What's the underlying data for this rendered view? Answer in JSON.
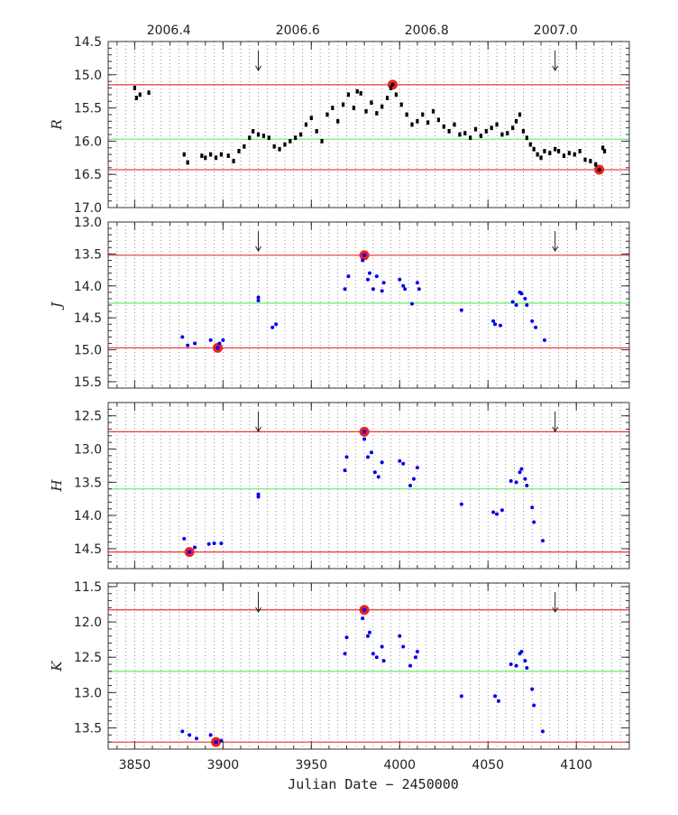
{
  "chart_data": {
    "type": "scatter",
    "shared_x": {
      "label": "Julian Date − 2450000",
      "range": [
        3835,
        4130
      ],
      "ticks": [
        3850,
        3900,
        3950,
        4000,
        4050,
        4100
      ],
      "top_axis_label_positions_jd": [
        3869.3,
        3942.3,
        4015.3,
        4088.3
      ],
      "top_axis_labels": [
        "2006.4",
        "2006.6",
        "2006.8",
        "2007.0"
      ],
      "dotted_vertical_grid": true
    },
    "arrow_markers_jd": [
      3920,
      4088
    ],
    "colors": {
      "R_points": "#000000",
      "JHK_points": "#0000ee",
      "extreme_lines": "#ee3333",
      "mean_line": "#66ee66",
      "highlight_marker": "#ee2222"
    },
    "panels": [
      {
        "band": "R",
        "ylim": [
          17.0,
          14.5
        ],
        "yticks": [
          14.5,
          15.0,
          15.5,
          16.0,
          16.5,
          17.0
        ],
        "ytick_labels": [
          "14.5",
          "15.0",
          "15.5",
          "16.0",
          "16.5",
          "17.0"
        ],
        "max_line": 15.15,
        "mean_line": 15.97,
        "min_line": 16.43,
        "highlighted_points": [
          [
            3996,
            15.15
          ],
          [
            4113,
            16.43
          ]
        ],
        "points": [
          [
            3850,
            15.2
          ],
          [
            3851,
            15.35
          ],
          [
            3853,
            15.3
          ],
          [
            3858,
            15.27
          ],
          [
            3878,
            16.2
          ],
          [
            3880,
            16.32
          ],
          [
            3888,
            16.22
          ],
          [
            3890,
            16.25
          ],
          [
            3893,
            16.2
          ],
          [
            3896,
            16.25
          ],
          [
            3899,
            16.2
          ],
          [
            3903,
            16.22
          ],
          [
            3906,
            16.3
          ],
          [
            3909,
            16.15
          ],
          [
            3912,
            16.08
          ],
          [
            3915,
            15.95
          ],
          [
            3917,
            15.85
          ],
          [
            3920,
            15.9
          ],
          [
            3923,
            15.92
          ],
          [
            3926,
            15.95
          ],
          [
            3929,
            16.08
          ],
          [
            3932,
            16.12
          ],
          [
            3935,
            16.05
          ],
          [
            3938,
            16.0
          ],
          [
            3941,
            15.95
          ],
          [
            3944,
            15.9
          ],
          [
            3947,
            15.75
          ],
          [
            3950,
            15.65
          ],
          [
            3953,
            15.85
          ],
          [
            3956,
            16.0
          ],
          [
            3959,
            15.6
          ],
          [
            3962,
            15.5
          ],
          [
            3965,
            15.7
          ],
          [
            3968,
            15.45
          ],
          [
            3971,
            15.3
          ],
          [
            3974,
            15.5
          ],
          [
            3976,
            15.25
          ],
          [
            3978,
            15.28
          ],
          [
            3981,
            15.55
          ],
          [
            3984,
            15.42
          ],
          [
            3987,
            15.58
          ],
          [
            3990,
            15.48
          ],
          [
            3993,
            15.35
          ],
          [
            3995,
            15.2
          ],
          [
            3998,
            15.3
          ],
          [
            4001,
            15.45
          ],
          [
            4004,
            15.6
          ],
          [
            4007,
            15.75
          ],
          [
            4010,
            15.7
          ],
          [
            4013,
            15.6
          ],
          [
            4016,
            15.72
          ],
          [
            4019,
            15.55
          ],
          [
            4022,
            15.68
          ],
          [
            4025,
            15.78
          ],
          [
            4028,
            15.85
          ],
          [
            4031,
            15.75
          ],
          [
            4034,
            15.9
          ],
          [
            4037,
            15.88
          ],
          [
            4040,
            15.95
          ],
          [
            4043,
            15.82
          ],
          [
            4046,
            15.92
          ],
          [
            4049,
            15.85
          ],
          [
            4052,
            15.8
          ],
          [
            4055,
            15.75
          ],
          [
            4058,
            15.9
          ],
          [
            4061,
            15.88
          ],
          [
            4064,
            15.8
          ],
          [
            4066,
            15.7
          ],
          [
            4068,
            15.6
          ],
          [
            4070,
            15.85
          ],
          [
            4072,
            15.95
          ],
          [
            4074,
            16.05
          ],
          [
            4076,
            16.12
          ],
          [
            4078,
            16.2
          ],
          [
            4080,
            16.25
          ],
          [
            4082,
            16.15
          ],
          [
            4085,
            16.18
          ],
          [
            4088,
            16.12
          ],
          [
            4090,
            16.15
          ],
          [
            4093,
            16.22
          ],
          [
            4096,
            16.18
          ],
          [
            4099,
            16.2
          ],
          [
            4102,
            16.15
          ],
          [
            4105,
            16.28
          ],
          [
            4108,
            16.3
          ],
          [
            4111,
            16.35
          ],
          [
            4115,
            16.1
          ],
          [
            4116,
            16.15
          ]
        ]
      },
      {
        "band": "J",
        "ylim": [
          15.6,
          13.0
        ],
        "yticks": [
          13.0,
          13.5,
          14.0,
          14.5,
          15.0,
          15.5
        ],
        "ytick_labels": [
          "13.0",
          "13.5",
          "14.0",
          "14.5",
          "15.0",
          "15.5"
        ],
        "max_line": 13.52,
        "mean_line": 14.27,
        "min_line": 14.97,
        "highlighted_points": [
          [
            3980,
            13.52
          ],
          [
            3897,
            14.97
          ]
        ],
        "points": [
          [
            3877,
            14.8
          ],
          [
            3880,
            14.93
          ],
          [
            3884,
            14.9
          ],
          [
            3893,
            14.85
          ],
          [
            3898,
            14.9
          ],
          [
            3900,
            14.85
          ],
          [
            3920,
            14.18
          ],
          [
            3920,
            14.23
          ],
          [
            3928,
            14.65
          ],
          [
            3930,
            14.6
          ],
          [
            3969,
            14.05
          ],
          [
            3971,
            13.85
          ],
          [
            3979,
            13.6
          ],
          [
            3982,
            13.9
          ],
          [
            3983,
            13.8
          ],
          [
            3985,
            14.05
          ],
          [
            3987,
            13.85
          ],
          [
            3990,
            14.08
          ],
          [
            3991,
            13.95
          ],
          [
            4000,
            13.9
          ],
          [
            4002,
            14.0
          ],
          [
            4003,
            14.05
          ],
          [
            4007,
            14.28
          ],
          [
            4010,
            13.95
          ],
          [
            4011,
            14.05
          ],
          [
            4035,
            14.38
          ],
          [
            4053,
            14.55
          ],
          [
            4054,
            14.6
          ],
          [
            4057,
            14.62
          ],
          [
            4064,
            14.25
          ],
          [
            4066,
            14.3
          ],
          [
            4068,
            14.1
          ],
          [
            4069,
            14.12
          ],
          [
            4071,
            14.2
          ],
          [
            4072,
            14.3
          ],
          [
            4075,
            14.55
          ],
          [
            4077,
            14.65
          ],
          [
            4082,
            14.85
          ]
        ]
      },
      {
        "band": "H",
        "ylim": [
          14.8,
          12.3
        ],
        "yticks": [
          12.5,
          13.0,
          13.5,
          14.0,
          14.5
        ],
        "ytick_labels": [
          "12.5",
          "13.0",
          "13.5",
          "14.0",
          "14.5"
        ],
        "max_line": 12.74,
        "mean_line": 13.6,
        "min_line": 14.55,
        "highlighted_points": [
          [
            3980,
            12.74
          ],
          [
            3881,
            14.55
          ]
        ],
        "points": [
          [
            3878,
            14.35
          ],
          [
            3884,
            14.48
          ],
          [
            3892,
            14.43
          ],
          [
            3895,
            14.42
          ],
          [
            3899,
            14.42
          ],
          [
            3920,
            13.68
          ],
          [
            3920,
            13.72
          ],
          [
            3969,
            13.32
          ],
          [
            3970,
            13.12
          ],
          [
            3980,
            12.85
          ],
          [
            3982,
            13.12
          ],
          [
            3984,
            13.05
          ],
          [
            3986,
            13.35
          ],
          [
            3988,
            13.42
          ],
          [
            3990,
            13.2
          ],
          [
            4000,
            13.18
          ],
          [
            4002,
            13.22
          ],
          [
            4006,
            13.55
          ],
          [
            4008,
            13.45
          ],
          [
            4010,
            13.28
          ],
          [
            4035,
            13.83
          ],
          [
            4053,
            13.95
          ],
          [
            4055,
            13.98
          ],
          [
            4058,
            13.92
          ],
          [
            4063,
            13.48
          ],
          [
            4066,
            13.5
          ],
          [
            4068,
            13.35
          ],
          [
            4069,
            13.3
          ],
          [
            4071,
            13.45
          ],
          [
            4072,
            13.55
          ],
          [
            4075,
            13.88
          ],
          [
            4076,
            14.1
          ],
          [
            4081,
            14.38
          ]
        ]
      },
      {
        "band": "K",
        "ylim": [
          13.8,
          11.45
        ],
        "yticks": [
          11.5,
          12.0,
          12.5,
          13.0,
          13.5
        ],
        "ytick_labels": [
          "11.5",
          "12.0",
          "12.5",
          "13.0",
          "13.5"
        ],
        "max_line": 11.83,
        "mean_line": 12.7,
        "min_line": 13.7,
        "highlighted_points": [
          [
            3980,
            11.83
          ],
          [
            3896,
            13.7
          ]
        ],
        "points": [
          [
            3877,
            13.55
          ],
          [
            3881,
            13.6
          ],
          [
            3885,
            13.65
          ],
          [
            3893,
            13.6
          ],
          [
            3899,
            13.68
          ],
          [
            3969,
            12.45
          ],
          [
            3970,
            12.22
          ],
          [
            3979,
            11.95
          ],
          [
            3982,
            12.2
          ],
          [
            3983,
            12.15
          ],
          [
            3985,
            12.45
          ],
          [
            3987,
            12.5
          ],
          [
            3990,
            12.35
          ],
          [
            3991,
            12.55
          ],
          [
            4000,
            12.2
          ],
          [
            4002,
            12.35
          ],
          [
            4006,
            12.62
          ],
          [
            4009,
            12.5
          ],
          [
            4010,
            12.42
          ],
          [
            4035,
            13.05
          ],
          [
            4054,
            13.05
          ],
          [
            4056,
            13.12
          ],
          [
            4063,
            12.6
          ],
          [
            4066,
            12.62
          ],
          [
            4068,
            12.45
          ],
          [
            4069,
            12.42
          ],
          [
            4071,
            12.55
          ],
          [
            4072,
            12.65
          ],
          [
            4075,
            12.95
          ],
          [
            4076,
            13.18
          ],
          [
            4081,
            13.55
          ]
        ]
      }
    ]
  }
}
